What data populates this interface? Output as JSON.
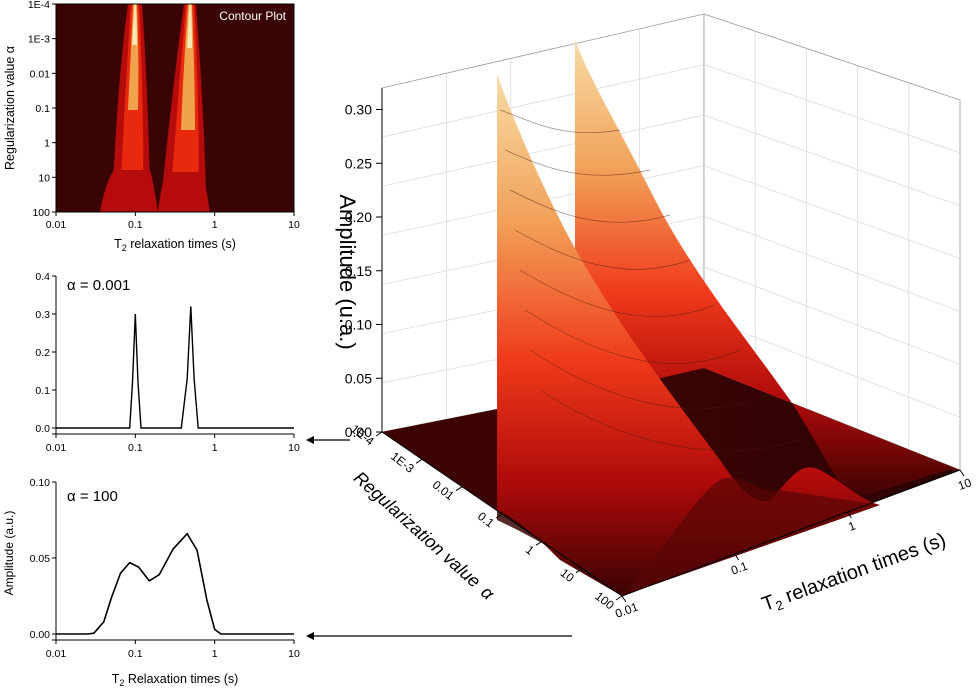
{
  "chart_data": [
    {
      "type": "heatmap",
      "name": "contour",
      "title": "Contour Plot",
      "xlabel": "T2 relaxation times (s)",
      "ylabel": "Regularization value α",
      "x_ticks": [
        "0.01",
        "0.1",
        "1",
        "10"
      ],
      "y_ticks": [
        "1E-4",
        "1E-3",
        "0.01",
        "0.1",
        "1",
        "10",
        "100"
      ],
      "xlim": [
        0.01,
        10
      ],
      "ylim": [
        0.0001,
        100
      ],
      "peaks_s": [
        0.1,
        0.5
      ]
    },
    {
      "type": "line",
      "name": "alpha-0001",
      "annotation": "α = 0.001",
      "x_ticks": [
        "0.01",
        "0.1",
        "1",
        "10"
      ],
      "y_ticks": [
        "0.0",
        "0.1",
        "0.2",
        "0.3",
        "0.4"
      ],
      "xlim": [
        0.01,
        10
      ],
      "ylim": [
        0,
        0.4
      ],
      "x_scale": "log",
      "series": [
        {
          "name": "α = 0.001",
          "x": [
            0.01,
            0.085,
            0.092,
            0.1,
            0.108,
            0.118,
            0.38,
            0.45,
            0.5,
            0.55,
            0.62,
            10
          ],
          "values": [
            0,
            0,
            0.12,
            0.3,
            0.12,
            0,
            0,
            0.13,
            0.32,
            0.13,
            0,
            0
          ]
        }
      ]
    },
    {
      "type": "line",
      "name": "alpha-100",
      "annotation": "α = 100",
      "xlabel": "T2 Relaxation times (s)",
      "shared_ylabel": "Amplitude (a.u.)",
      "x_ticks": [
        "0.01",
        "0.1",
        "1",
        "10"
      ],
      "y_ticks": [
        "0.00",
        "0.05",
        "0.10"
      ],
      "xlim": [
        0.01,
        10
      ],
      "ylim": [
        0,
        0.1
      ],
      "x_scale": "log",
      "series": [
        {
          "name": "α = 100",
          "x": [
            0.01,
            0.025,
            0.03,
            0.04,
            0.05,
            0.065,
            0.085,
            0.11,
            0.15,
            0.2,
            0.3,
            0.45,
            0.6,
            0.8,
            1.0,
            1.2,
            10
          ],
          "values": [
            0,
            0,
            0.0005,
            0.008,
            0.024,
            0.04,
            0.047,
            0.044,
            0.035,
            0.039,
            0.056,
            0.066,
            0.055,
            0.022,
            0.003,
            0,
            0
          ]
        }
      ]
    },
    {
      "type": "area",
      "name": "surface-3d",
      "zlabel": "Amplitude (u.a.)",
      "ylabel": "Regularization value α",
      "xlabel": "T2 relaxation times (s)",
      "z_ticks": [
        "0.00",
        "0.05",
        "0.10",
        "0.15",
        "0.20",
        "0.25",
        "0.30"
      ],
      "alpha_ticks": [
        "1E-4",
        "1E-3",
        "0.01",
        "0.1",
        "1",
        "10",
        "100"
      ],
      "t2_ticks": [
        "0.01",
        "0.1",
        "1",
        "10"
      ],
      "zlim": [
        0,
        0.32
      ]
    }
  ],
  "labels": {
    "contour_title": "Contour Plot",
    "contour_ylabel": "Regularization value α",
    "contour_xlabel_pre": "T",
    "contour_xlabel_sub": "2",
    "contour_xlabel_post": " relaxation times (s)",
    "p1_annotation": "α = 0.001",
    "p2_annotation": "α = 100",
    "amp_label": "Amplitude (a.u.)",
    "p2_xlabel_pre": "T",
    "p2_xlabel_sub": "2",
    "p2_xlabel_post": " Relaxation times (s)",
    "z_label": "Amplitude (u.a.)",
    "alpha_axis_label": "Regularization value",
    "alpha_symbol": "α",
    "t2_axis_pre": "T",
    "t2_axis_sub": "2",
    "t2_axis_post": " relaxation times (s)"
  },
  "colors": {
    "dark": "#2e0202",
    "red": "#ee1c0c",
    "orange": "#f09030",
    "pale": "#f7dca6"
  }
}
